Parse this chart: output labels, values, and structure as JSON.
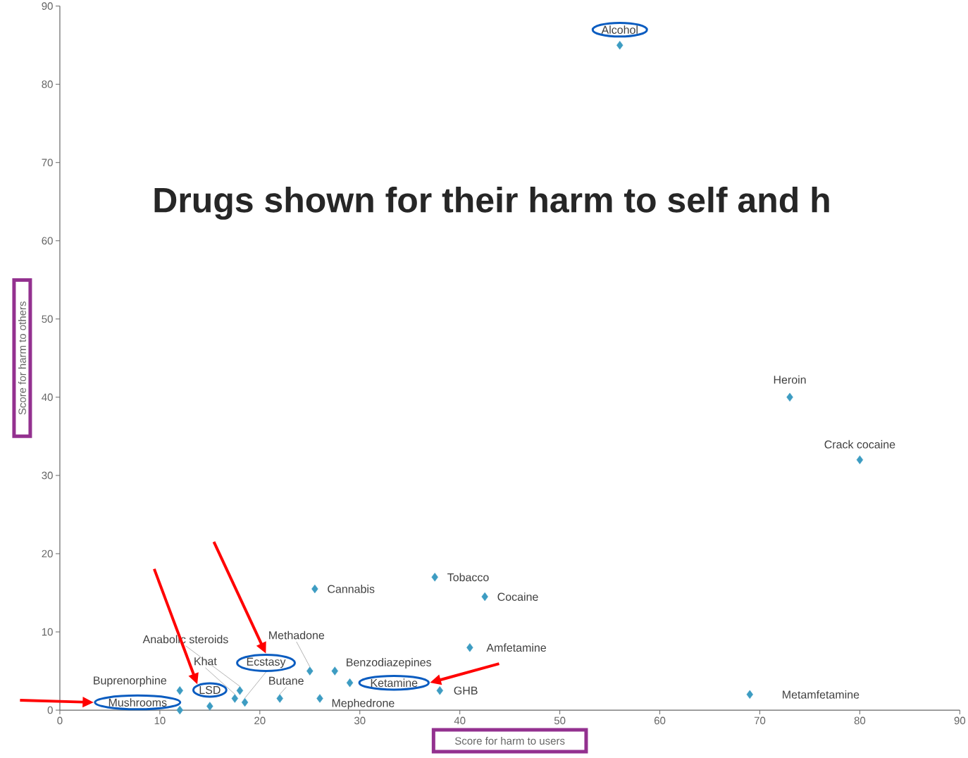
{
  "chart_data": {
    "type": "scatter",
    "title": "Drugs shown for their harm to self and h",
    "xlabel": "Score for harm to users",
    "ylabel": "Score for harm to others",
    "series": [
      {
        "color": "#3d9cc2",
        "x": [
          56,
          73,
          80,
          69,
          37.5,
          42.5,
          25.5,
          41,
          38,
          29,
          27.5,
          25,
          26,
          22,
          18.5,
          18,
          17.5,
          15,
          12,
          12
        ],
        "values": [
          85,
          40,
          32,
          2,
          17,
          14.5,
          15.5,
          8,
          2.5,
          3.5,
          5,
          5,
          1.5,
          1.5,
          1,
          2.5,
          1.5,
          0.5,
          2.5,
          0
        ]
      }
    ],
    "annotations": [
      {
        "text": "Alcohol",
        "x": 56,
        "y": 85
      },
      {
        "text": "Heroin",
        "x": 73,
        "y": 40
      },
      {
        "text": "Crack cocaine",
        "x": 80,
        "y": 32
      },
      {
        "text": "Metamfetamine",
        "x": 69,
        "y": 2
      },
      {
        "text": "Tobacco",
        "x": 37.5,
        "y": 17
      },
      {
        "text": "Cocaine",
        "x": 42.5,
        "y": 14.5
      },
      {
        "text": "Cannabis",
        "x": 25.5,
        "y": 15.5
      },
      {
        "text": "Amfetamine",
        "x": 41,
        "y": 8
      },
      {
        "text": "GHB",
        "x": 38,
        "y": 2.5
      },
      {
        "text": "Ketamine",
        "x": 29,
        "y": 3.5
      },
      {
        "text": "Benzodiazepines",
        "x": 27.5,
        "y": 5
      },
      {
        "text": "Methadone",
        "x": 25,
        "y": 5
      },
      {
        "text": "Mephedrone",
        "x": 26,
        "y": 1.5
      },
      {
        "text": "Butane",
        "x": 22,
        "y": 1.5
      },
      {
        "text": "Ecstasy",
        "x": 18.5,
        "y": 1
      },
      {
        "text": "Anabolic steroids",
        "x": 18,
        "y": 2.5
      },
      {
        "text": "Khat",
        "x": 17.5,
        "y": 1.5
      },
      {
        "text": "LSD",
        "x": 15,
        "y": 0.5
      },
      {
        "text": "Buprenorphine",
        "x": 12,
        "y": 2.5
      },
      {
        "text": "Mushrooms",
        "x": 12,
        "y": 0
      }
    ],
    "xlim": [
      0,
      90
    ],
    "ylim": [
      0,
      90
    ],
    "xticks": [
      0,
      10,
      20,
      30,
      40,
      50,
      60,
      70,
      80,
      90
    ],
    "yticks": [
      0,
      10,
      20,
      30,
      40,
      50,
      60,
      70,
      80,
      90
    ],
    "marker": "diamond"
  }
}
